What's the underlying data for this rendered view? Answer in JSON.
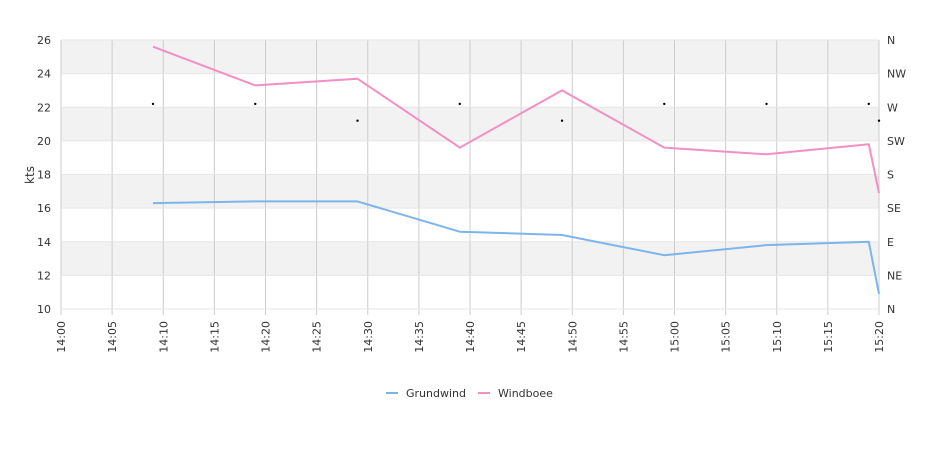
{
  "chart_data": {
    "type": "line",
    "ylabel": "kts",
    "ylim": [
      10,
      26
    ],
    "yticks": [
      "10",
      "12",
      "14",
      "16",
      "18",
      "20",
      "22",
      "24",
      "26"
    ],
    "x_range": [
      "14:00",
      "15:20"
    ],
    "xticks": [
      "14:00",
      "14:05",
      "14:10",
      "14:15",
      "14:20",
      "14:25",
      "14:30",
      "14:35",
      "14:40",
      "14:45",
      "14:50",
      "14:55",
      "15:00",
      "15:05",
      "15:10",
      "15:15",
      "15:20"
    ],
    "right_axis": {
      "labels": [
        "N",
        "NE",
        "E",
        "SE",
        "S",
        "SW",
        "W",
        "NW",
        "N"
      ]
    },
    "series": [
      {
        "name": "Grundwind",
        "color": "#7cb5ec",
        "points": [
          {
            "x": "14:09",
            "y": 16.3
          },
          {
            "x": "14:19",
            "y": 16.4
          },
          {
            "x": "14:29",
            "y": 16.4
          },
          {
            "x": "14:39",
            "y": 14.6
          },
          {
            "x": "14:49",
            "y": 14.4
          },
          {
            "x": "14:59",
            "y": 13.2
          },
          {
            "x": "15:09",
            "y": 13.8
          },
          {
            "x": "15:19",
            "y": 14.0
          },
          {
            "x": "15:20",
            "y": 10.9
          }
        ]
      },
      {
        "name": "Windboee",
        "color": "#f28fc4",
        "points": [
          {
            "x": "14:09",
            "y": 25.6
          },
          {
            "x": "14:19",
            "y": 23.3
          },
          {
            "x": "14:29",
            "y": 23.7
          },
          {
            "x": "14:39",
            "y": 19.6
          },
          {
            "x": "14:49",
            "y": 23.0
          },
          {
            "x": "14:59",
            "y": 19.6
          },
          {
            "x": "15:09",
            "y": 19.2
          },
          {
            "x": "15:19",
            "y": 19.8
          },
          {
            "x": "15:20",
            "y": 16.9
          }
        ]
      }
    ],
    "direction_markers": [
      {
        "x": "14:09",
        "y": 22.2
      },
      {
        "x": "14:19",
        "y": 22.2
      },
      {
        "x": "14:29",
        "y": 21.2
      },
      {
        "x": "14:39",
        "y": 22.2
      },
      {
        "x": "14:49",
        "y": 21.2
      },
      {
        "x": "14:59",
        "y": 22.2
      },
      {
        "x": "15:09",
        "y": 22.2
      },
      {
        "x": "15:19",
        "y": 22.2
      },
      {
        "x": "15:20",
        "y": 21.2
      }
    ],
    "grid": true,
    "legend_position": "bottom-center"
  }
}
